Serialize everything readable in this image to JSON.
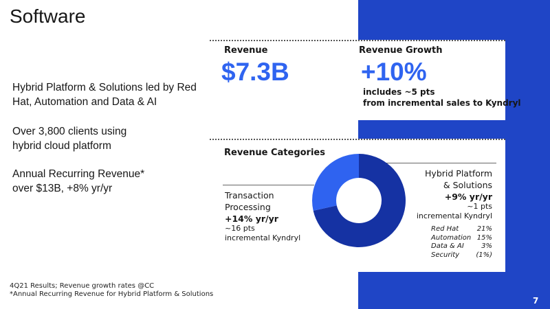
{
  "title": "Software",
  "bullets": [
    "Hybrid Platform & Solutions led by Red Hat, Automation and Data & AI",
    "Over 3,800 clients using hybrid cloud platform",
    "Annual Recurring Revenue* over $13B, +8% yr/yr"
  ],
  "revenue": {
    "label": "Revenue",
    "value": "$7.3B"
  },
  "growth": {
    "label": "Revenue Growth",
    "value": "+10%",
    "note_1": "includes ~5 pts",
    "note_2": "from incremental sales to Kyndryl"
  },
  "categories": {
    "title": "Revenue Categories",
    "transaction": {
      "name_1": "Transaction",
      "name_2": "Processing",
      "growth": "+14% yr/yr",
      "pts": "~16 pts",
      "kyndryl": "incremental Kyndryl"
    },
    "hybrid": {
      "name_1": "Hybrid Platform",
      "name_2": "& Solutions",
      "growth": "+9% yr/yr",
      "pts": "~1 pts",
      "kyndryl": "incremental Kyndryl",
      "rows": [
        {
          "name": "Red Hat",
          "value": "21%"
        },
        {
          "name": "Automation",
          "value": "15%"
        },
        {
          "name": "Data & AI",
          "value": "3%"
        },
        {
          "name": "Security",
          "value": "(1%)"
        }
      ]
    }
  },
  "chart_data": {
    "type": "pie",
    "title": "Revenue Categories",
    "categories": [
      "Hybrid Platform & Solutions",
      "Transaction Processing"
    ],
    "values": [
      71.5,
      28.5
    ],
    "colors": [
      "#1532a3",
      "#2f63f0"
    ]
  },
  "footnotes": [
    "4Q21 Results; Revenue growth rates @CC",
    "*Annual Recurring Revenue for Hybrid Platform & Solutions"
  ],
  "page_number": "7"
}
